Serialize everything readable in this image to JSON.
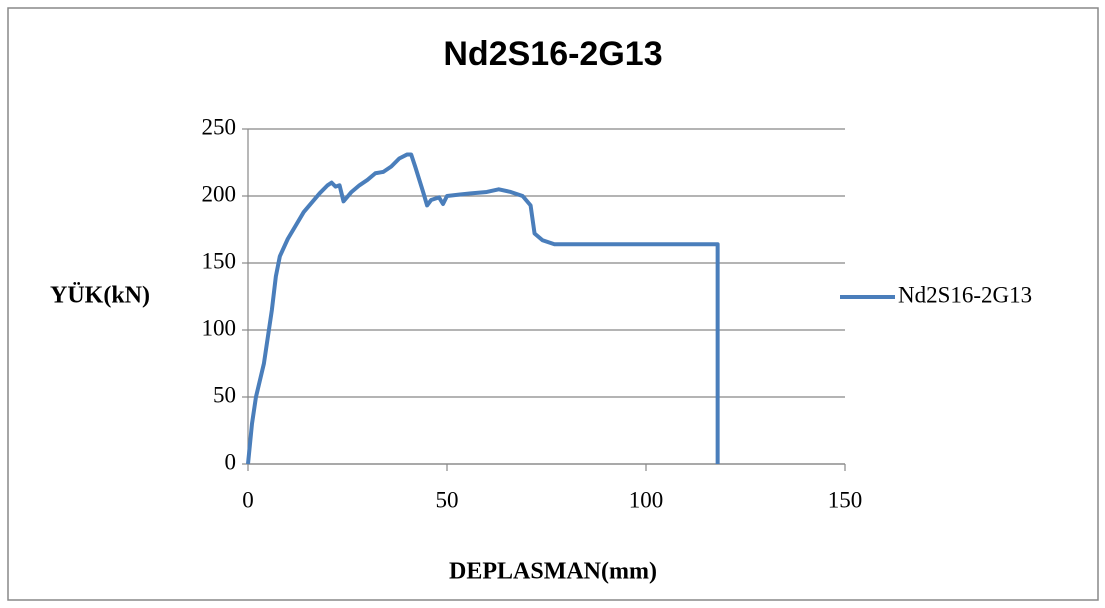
{
  "chart_data": {
    "type": "line",
    "title": "Nd2S16-2G13",
    "x_label": "DEPLASMAN(mm)",
    "y_label": "YÜK(kN)",
    "xlim": [
      0,
      150
    ],
    "xticks": [
      0,
      50,
      100,
      150
    ],
    "ylim": [
      0,
      250
    ],
    "yticks": [
      0,
      50,
      100,
      150,
      200,
      250
    ],
    "grid": true,
    "legend": "right",
    "series": [
      {
        "name": "Nd2S16-2G13",
        "color": "#4a7ebb",
        "x": [
          0,
          1,
          2,
          4,
          5,
          6,
          7,
          8,
          10,
          12,
          14,
          16,
          18,
          20,
          21,
          22,
          23,
          24,
          26,
          28,
          30,
          32,
          34,
          36,
          38,
          40,
          41,
          42,
          44,
          45,
          46,
          48,
          49,
          50,
          53,
          56,
          60,
          63,
          66,
          69,
          71,
          72,
          74,
          77,
          90,
          118,
          118
        ],
        "values": [
          0,
          30,
          50,
          75,
          95,
          115,
          140,
          155,
          168,
          178,
          188,
          195,
          202,
          208,
          210,
          207,
          208,
          196,
          203,
          208,
          212,
          217,
          218,
          222,
          228,
          231,
          231,
          222,
          203,
          193,
          197,
          199,
          194,
          200,
          201,
          202,
          203,
          205,
          203,
          200,
          193,
          172,
          167,
          164,
          164,
          164,
          0
        ]
      }
    ]
  }
}
